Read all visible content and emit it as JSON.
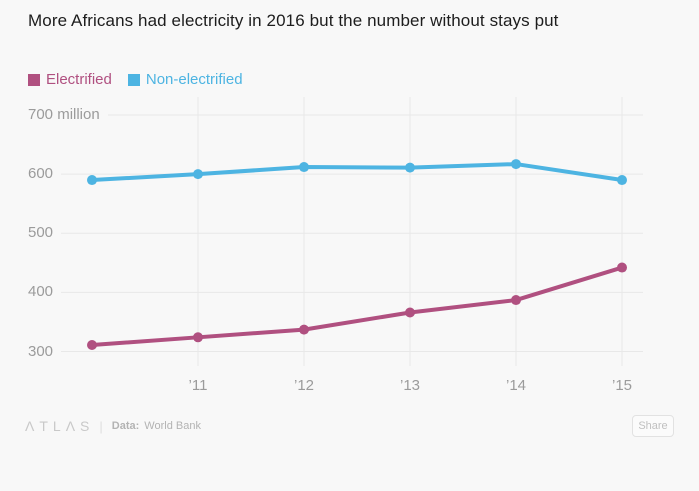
{
  "title": "More Africans had electricity in 2016 but the number without stays put",
  "legend": [
    {
      "label": "Electrified",
      "color": "#b05080"
    },
    {
      "label": "Non-electrified",
      "color": "#4db4e2"
    }
  ],
  "chart_data": {
    "type": "line",
    "title": "More Africans had electricity in 2016 but the number without stays put",
    "x": [
      2010,
      2011,
      2012,
      2013,
      2014,
      2015
    ],
    "x_tick_labels": [
      "",
      "’11",
      "’12",
      "’13",
      "’14",
      "’15"
    ],
    "series": [
      {
        "name": "Electrified",
        "color": "#b05080",
        "values": [
          311,
          324,
          337,
          366,
          387,
          442
        ]
      },
      {
        "name": "Non-electrified",
        "color": "#4db4e2",
        "values": [
          590,
          600,
          612,
          611,
          617,
          590
        ]
      }
    ],
    "y_ticks": [
      700,
      600,
      500,
      400,
      300
    ],
    "y_tick_labels": [
      "700 million",
      "600",
      "500",
      "400",
      "300"
    ],
    "ylim": [
      300,
      700
    ],
    "grid": true,
    "legend_position": "top-left"
  },
  "footer": {
    "logo": "ΛTLΛS",
    "divider": "|",
    "data_label": "Data:",
    "data_source": "World Bank",
    "share_label": "Share"
  },
  "colors": {
    "background": "#f8f8f8",
    "grid": "#e8e8e8",
    "axis_text": "#9b9b9b",
    "title_text": "#1d1d1d",
    "electrified": "#b05080",
    "non_electrified": "#4db4e2"
  }
}
